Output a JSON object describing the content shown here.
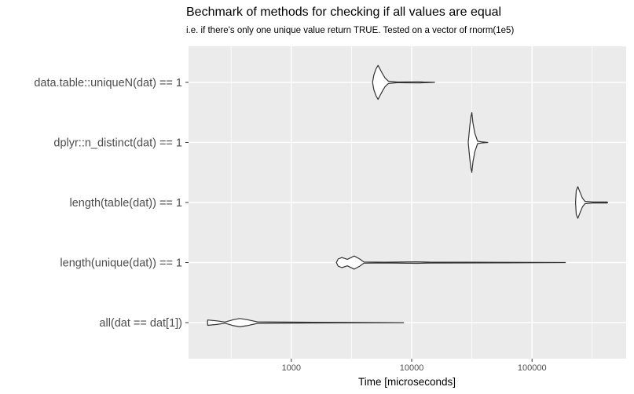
{
  "chart_data": {
    "type": "violin",
    "title": "Bechmark of methods for checking if all values are equal",
    "subtitle": "i.e. if there's only one unique value return TRUE. Tested on a vector of rnorm(1e5)",
    "xlabel": "Time [microseconds]",
    "ylabel": "",
    "x_scale": "log10",
    "xlim": [
      140,
      605000
    ],
    "x_ticks": [
      1000,
      10000,
      100000
    ],
    "x_tick_labels": [
      "1000",
      "10000",
      "100000"
    ],
    "x_minor_ticks": [
      316.2,
      3162.3,
      31622.8,
      316227.8
    ],
    "grid": true,
    "categories": [
      "data.table::uniqueN(dat) == 1",
      "dplyr::n_distinct(dat) == 1",
      "length(table(dat)) == 1",
      "length(unique(dat)) == 1",
      "all(dat == dat[1])"
    ],
    "series": [
      {
        "category": "data.table::uniqueN(dat) == 1",
        "density": [
          [
            4730,
            0
          ],
          [
            4850,
            0.25
          ],
          [
            5050,
            0.45
          ],
          [
            5250,
            0.57
          ],
          [
            5450,
            0.45
          ],
          [
            5700,
            0.3
          ],
          [
            6000,
            0.15
          ],
          [
            6400,
            0.04
          ],
          [
            7500,
            0.012
          ],
          [
            11500,
            0.02
          ],
          [
            12500,
            0.012
          ],
          [
            15500,
            0
          ]
        ]
      },
      {
        "category": "dplyr::n_distinct(dat) == 1",
        "density": [
          [
            29500,
            0
          ],
          [
            30300,
            0.5
          ],
          [
            31000,
            0.85
          ],
          [
            31600,
            1.0
          ],
          [
            32300,
            0.65
          ],
          [
            33500,
            0.3
          ],
          [
            35300,
            0.04
          ],
          [
            38000,
            0.02
          ],
          [
            42900,
            0
          ]
        ]
      },
      {
        "category": "length(table(dat)) == 1",
        "density": [
          [
            230000,
            0
          ],
          [
            233000,
            0.4
          ],
          [
            240000,
            0.53
          ],
          [
            250000,
            0.35
          ],
          [
            262000,
            0.15
          ],
          [
            275000,
            0.04
          ],
          [
            320000,
            0.015
          ],
          [
            420000,
            0.015
          ],
          [
            425000,
            0
          ]
        ]
      },
      {
        "category": "length(unique(dat)) == 1",
        "density": [
          [
            2370,
            0
          ],
          [
            2450,
            0.12
          ],
          [
            2630,
            0.17
          ],
          [
            2920,
            0.11
          ],
          [
            3330,
            0.22
          ],
          [
            3700,
            0.12
          ],
          [
            4000,
            0.02
          ],
          [
            6000,
            0.012
          ],
          [
            11000,
            0.025
          ],
          [
            14000,
            0.015
          ],
          [
            60000,
            0.01
          ],
          [
            189000,
            0
          ]
        ]
      },
      {
        "category": "all(dat == dat[1])",
        "density": [
          [
            201,
            0
          ],
          [
            202,
            0.09
          ],
          [
            240,
            0.06
          ],
          [
            281,
            0.02
          ],
          [
            330,
            0.1
          ],
          [
            373,
            0.14
          ],
          [
            430,
            0.1
          ],
          [
            522,
            0.025
          ],
          [
            1500,
            0.012
          ],
          [
            8560,
            0
          ]
        ]
      }
    ],
    "colors": {
      "panel": "#ebebeb",
      "grid": "#ffffff",
      "violin_fill": "#ffffff",
      "violin_stroke": "#333333"
    }
  }
}
